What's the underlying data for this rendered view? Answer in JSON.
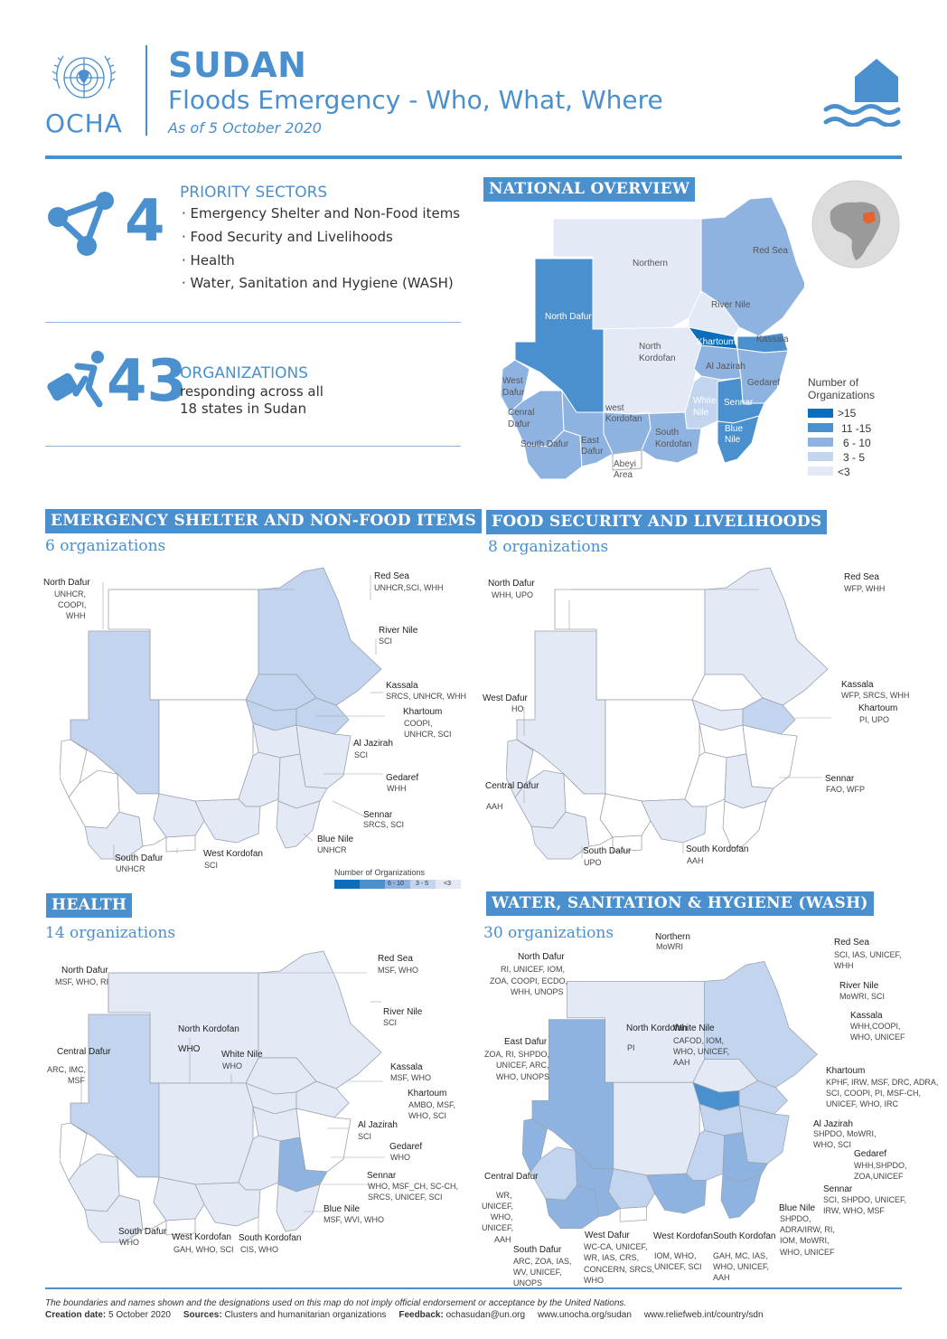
{
  "header": {
    "logo_word": "OCHA",
    "title": "SUDAN",
    "subtitle": "Floods Emergency - Who, What, Where",
    "date": "As of 5 October 2020"
  },
  "priority": {
    "count": "4",
    "heading": "PRIORITY SECTORS",
    "sectors": [
      "· Emergency Shelter and Non-Food items",
      "· Food Security and Livelihoods",
      "· Health",
      "· Water, Sanitation and Hygiene (WASH)"
    ]
  },
  "organizations": {
    "count": "43",
    "heading": "ORGANIZATIONS",
    "line1": "responding across all",
    "line2": "18 states in Sudan"
  },
  "national": {
    "banner": "NATIONAL OVERVIEW",
    "states": {
      "northern": "Northern",
      "red_sea": "Red Sea",
      "river_nile": "River Nile",
      "north_dafur": "North Dafur",
      "khartoum": "Khartoum",
      "kassala": "Kassala",
      "north_kordofan_1": "North",
      "north_kordofan_2": "Kordofan",
      "al_jazirah": "Al Jazirah",
      "gedaref": "Gedaref",
      "west_dafur_1": "West",
      "west_dafur_2": "Dafur",
      "central_dafur_1": "Cenral",
      "central_dafur_2": "Dafur",
      "west_kordofan_1": "west",
      "west_kordofan_2": "Kordofan",
      "white_nile_1": "White",
      "white_nile_2": "Nile",
      "sennar": "Sennar",
      "blue_nile_1": "Blue",
      "blue_nile_2": "Nile",
      "south_dafur": "South Dafur",
      "east_dafur_1": "East",
      "east_dafur_2": "Dafur",
      "south_kordofan_1": "South",
      "south_kordofan_2": "Kordofan",
      "abyei_1": "Abeyi",
      "abyei_2": "Area"
    },
    "legend": {
      "title_1": "Number of",
      "title_2": "Organizations",
      "items": [
        {
          "label": ">15",
          "color": "#0a6ebd"
        },
        {
          "label": "11 -15",
          "color": "#4a8fce"
        },
        {
          "label": "6 - 10",
          "color": "#8fb3e0"
        },
        {
          "label": "3 - 5",
          "color": "#c2d4ee"
        },
        {
          "label": "<3",
          "color": "#e3eaf6"
        }
      ]
    }
  },
  "shelter": {
    "banner": "EMERGENCY SHELTER AND NON-FOOD ITEMS",
    "count": "6 organizations",
    "labels": [
      {
        "name": "North Dafur",
        "orgs": [
          "UNHCR,",
          "COOPI,",
          "WHH"
        ]
      },
      {
        "name": "Red Sea",
        "orgs": [
          "UNHCR,SCI, WHH"
        ]
      },
      {
        "name": "River Nile",
        "orgs": [
          "SCI"
        ]
      },
      {
        "name": "Kassala",
        "orgs": [
          "SRCS, UNHCR, WHH"
        ]
      },
      {
        "name": "Khartoum",
        "orgs": [
          "COOPI,",
          "UNHCR, SCI"
        ]
      },
      {
        "name": "Al Jazirah",
        "orgs": [
          "SCI"
        ]
      },
      {
        "name": "Gedaref",
        "orgs": [
          "WHH"
        ]
      },
      {
        "name": "Sennar",
        "orgs": [
          "SRCS, SCI"
        ]
      },
      {
        "name": "Blue Nile",
        "orgs": [
          "UNHCR"
        ]
      },
      {
        "name": "West Kordofan",
        "orgs": [
          "SCI"
        ]
      },
      {
        "name": "South Dafur",
        "orgs": [
          "UNHCR"
        ]
      }
    ],
    "legend_title": "Number of Organizations",
    "legend_items": [
      "6 - 10",
      "3 - 5",
      "<3"
    ]
  },
  "food": {
    "banner": "FOOD SECURITY AND LIVELIHOODS",
    "count": "8 organizations",
    "labels": [
      {
        "name": "North Dafur",
        "orgs": [
          "WHH, UPO"
        ]
      },
      {
        "name": "Red Sea",
        "orgs": [
          "WFP, WHH"
        ]
      },
      {
        "name": "West Dafur",
        "orgs": [
          "HO"
        ]
      },
      {
        "name": "Kassala",
        "orgs": [
          "WFP, SRCS, WHH"
        ]
      },
      {
        "name": "Khartoum",
        "orgs": [
          "PI, UPO"
        ]
      },
      {
        "name": "Sennar",
        "orgs": [
          "FAO, WFP"
        ]
      },
      {
        "name": "Central Dafur",
        "orgs": [
          "AAH"
        ]
      },
      {
        "name": "South Dafur",
        "orgs": [
          "UPO"
        ]
      },
      {
        "name": "South Kordofan",
        "orgs": [
          "AAH"
        ]
      }
    ]
  },
  "health": {
    "banner": "HEALTH",
    "count": "14 organizations",
    "labels": [
      {
        "name": "North Dafur",
        "orgs": [
          "MSF, WHO, RI"
        ]
      },
      {
        "name": "Red Sea",
        "orgs": [
          "MSF, WHO"
        ]
      },
      {
        "name": "River Nile",
        "orgs": [
          "SCI"
        ]
      },
      {
        "name": "North Kordofan",
        "orgs": [
          "WHO"
        ]
      },
      {
        "name": "White Nile",
        "orgs": [
          "WHO"
        ]
      },
      {
        "name": "Central Dafur",
        "orgs": [
          "ARC, IMC,",
          "MSF"
        ]
      },
      {
        "name": "Kassala",
        "orgs": [
          "MSF, WHO"
        ]
      },
      {
        "name": "Khartoum",
        "orgs": [
          "AMBO, MSF,",
          "WHO, SCI"
        ]
      },
      {
        "name": "Al Jazirah",
        "orgs": [
          "SCI"
        ]
      },
      {
        "name": "Gedaref",
        "orgs": [
          "WHO"
        ]
      },
      {
        "name": "Sennar",
        "orgs": [
          "WHO, MSF_CH, SC-CH,",
          "SRCS, UNICEF, SCI"
        ]
      },
      {
        "name": "Blue Nile",
        "orgs": [
          "MSF, WVI, WHO"
        ]
      },
      {
        "name": "South Dafur",
        "orgs": [
          "WHO"
        ]
      },
      {
        "name": "West Kordofan",
        "orgs": [
          "GAH, WHO, SCI"
        ]
      },
      {
        "name": "South Kordofan",
        "orgs": [
          "CIS, WHO"
        ]
      }
    ]
  },
  "wash": {
    "banner": "WATER, SANITATION & HYGIENE (WASH)",
    "count": "30 organizations",
    "labels": [
      {
        "name": "Northern",
        "orgs": [
          "MoWRI"
        ]
      },
      {
        "name": "North Dafur",
        "orgs": [
          "RI, UNICEF, IOM,",
          "ZOA, COOPI, ECDO,",
          "WHH, UNOPS"
        ]
      },
      {
        "name": "Red Sea",
        "orgs": [
          "SCI, IAS, UNICEF,",
          "WHH"
        ]
      },
      {
        "name": "River Nile",
        "orgs": [
          "MoWRI, SCI"
        ]
      },
      {
        "name": "Kassala",
        "orgs": [
          "WHH,COOPI,",
          "WHO, UNICEF"
        ]
      },
      {
        "name": "North Kordofan",
        "orgs": [
          "PI"
        ]
      },
      {
        "name": "White Nile",
        "orgs": [
          "CAFOD, IOM,",
          "WHO, UNICEF,",
          "AAH"
        ]
      },
      {
        "name": "East Dafur",
        "orgs": [
          "ZOA, RI, SHPDO,",
          "UNICEF, ARC,",
          "WHO, UNOPS"
        ]
      },
      {
        "name": "Khartoum",
        "orgs": [
          "KPHF, IRW, MSF, DRC, ADRA,",
          "SCI, COOPI, PI, MSF-CH,",
          "UNICEF, WHO, IRC"
        ]
      },
      {
        "name": "Al Jazirah",
        "orgs": [
          "SHPDO, MoWRI,",
          "WHO, SCI"
        ]
      },
      {
        "name": "Gedaref",
        "orgs": [
          "WHH,SHPDO,",
          "ZOA,UNICEF"
        ]
      },
      {
        "name": "Sennar",
        "orgs": [
          "SCI, SHPDO, UNICEF,",
          "IRW, WHO, MSF"
        ]
      },
      {
        "name": "Central Dafur",
        "orgs": [
          "WR,",
          "UNICEF,",
          "WHO,",
          "UNICEF,",
          "AAH"
        ]
      },
      {
        "name": "Blue Nile",
        "orgs": [
          "SHPDO,",
          "ADRA/IRW, RI,",
          "IOM, MoWRI,",
          "WHO, UNICEF"
        ]
      },
      {
        "name": "West Dafur",
        "orgs": [
          "WC-CA, UNICEF,",
          "WR, IAS, CRS,",
          "CONCERN, SRCS,",
          "WHO"
        ]
      },
      {
        "name": "West Kordofan",
        "orgs": [
          "IOM, WHO,",
          "UNICEF, SCI"
        ]
      },
      {
        "name": "South Kordofan",
        "orgs": [
          "GAH, MC, IAS,",
          "WHO, UNICEF,",
          "AAH"
        ]
      },
      {
        "name": "South Dafur",
        "orgs": [
          "ARC, ZOA, IAS,",
          "WV, UNICEF,",
          "UNOPS"
        ]
      }
    ]
  },
  "footer": {
    "disclaimer": "The boundaries and names shown and the designations used on this map do not imply official endorsement or acceptance by the United Nations.",
    "creation_label": "Creation date:",
    "creation_value": "5 October 2020",
    "sources_label": "Sources:",
    "sources_value": "Clusters and humanitarian organizations",
    "feedback_label": "Feedback:",
    "feedback_value": "ochasudan@un.org",
    "url1": "www.unocha.org/sudan",
    "url2": "www.reliefweb.int/country/sdn"
  },
  "colors": {
    "accent": "#4a8fce",
    "dark": "#0a6ebd",
    "mid": "#8fb3e0",
    "light": "#c2d4ee",
    "pale": "#e3eaf6"
  }
}
